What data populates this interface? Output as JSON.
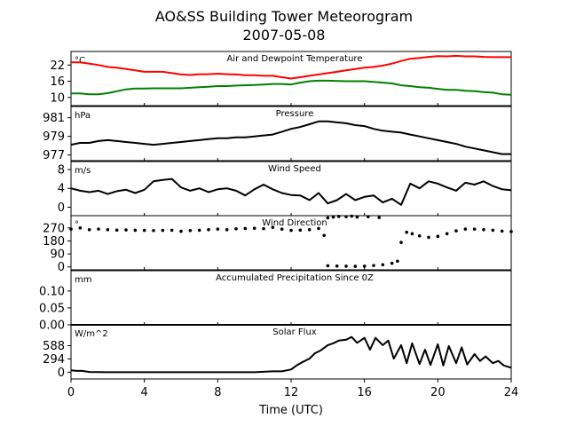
{
  "title_line1": "AO&SS Building Tower Meteorogram",
  "title_line2": "2007-05-08",
  "colors": {
    "temperature": "#ff0000",
    "dewpoint": "#008000",
    "black": "#000000"
  },
  "chart_data": [
    {
      "type": "line",
      "title": "Air and Dewpoint Temperature",
      "unit": "°C",
      "ylim": [
        7,
        27
      ],
      "yticks": [
        10,
        16,
        22
      ],
      "xlim": [
        0,
        24
      ],
      "series": [
        {
          "color": "#ff0000",
          "x": [
            0,
            0.5,
            1,
            1.5,
            2,
            2.5,
            3,
            3.5,
            4,
            4.5,
            5,
            5.5,
            6,
            6.5,
            7,
            7.5,
            8,
            8.5,
            9,
            9.5,
            10,
            10.5,
            11,
            11.5,
            12,
            12.5,
            13,
            13.5,
            14,
            14.5,
            15,
            15.5,
            16,
            16.5,
            17,
            17.5,
            18,
            18.5,
            19,
            19.5,
            20,
            20.5,
            21,
            21.5,
            22,
            22.5,
            23,
            23.5,
            24
          ],
          "values": [
            23,
            23,
            22.5,
            22,
            21.3,
            21,
            20.5,
            20,
            19.5,
            19.5,
            19.5,
            19,
            18.5,
            18.3,
            18.6,
            18.6,
            18.8,
            18.6,
            18.5,
            18.2,
            18.2,
            18,
            18,
            17.5,
            17,
            17.5,
            18,
            18.5,
            19,
            19.5,
            20,
            20.5,
            21,
            21.3,
            21.8,
            22.5,
            23.5,
            24.3,
            24.6,
            25,
            25.3,
            25.2,
            25.4,
            25.2,
            25.2,
            25,
            24.9,
            24.9,
            24.9
          ]
        },
        {
          "color": "#008000",
          "x": [
            0,
            0.5,
            1,
            1.5,
            2,
            2.5,
            3,
            3.5,
            4,
            4.5,
            5,
            5.5,
            6,
            6.5,
            7,
            7.5,
            8,
            8.5,
            9,
            9.5,
            10,
            10.5,
            11,
            11.5,
            12,
            12.5,
            13,
            13.5,
            14,
            14.5,
            15,
            15.5,
            16,
            16.5,
            17,
            17.5,
            18,
            18.5,
            19,
            19.5,
            20,
            20.5,
            21,
            21.5,
            22,
            22.5,
            23,
            23.5,
            24
          ],
          "values": [
            11.5,
            11.5,
            11.2,
            11.2,
            11.6,
            12.3,
            13,
            13.3,
            13.3,
            13.4,
            13.4,
            13.4,
            13.4,
            13.6,
            13.8,
            14,
            14.2,
            14.2,
            14.4,
            14.5,
            14.6,
            14.8,
            15,
            15,
            14.8,
            15.5,
            16,
            16.2,
            16.2,
            16.1,
            16,
            16,
            16,
            15.8,
            15.5,
            15.2,
            14.5,
            14.2,
            13.8,
            13.6,
            13.2,
            12.8,
            12.8,
            12.5,
            12.3,
            12,
            11.8,
            11.2,
            11
          ]
        }
      ]
    },
    {
      "type": "line",
      "title": "Pressure",
      "unit": "hPa",
      "ylim": [
        976.4,
        982.2
      ],
      "yticks": [
        977,
        979,
        981
      ],
      "xlim": [
        0,
        24
      ],
      "series": [
        {
          "color": "#000000",
          "x": [
            0,
            0.5,
            1,
            1.5,
            2,
            2.5,
            3,
            3.5,
            4,
            4.5,
            5,
            5.5,
            6,
            6.5,
            7,
            7.5,
            8,
            8.5,
            9,
            9.5,
            10,
            10.5,
            11,
            11.5,
            12,
            12.5,
            13,
            13.5,
            14,
            14.5,
            15,
            15.5,
            16,
            16.5,
            17,
            17.5,
            18,
            18.5,
            19,
            19.5,
            20,
            20.5,
            21,
            21.5,
            22,
            22.5,
            23,
            23.5,
            24
          ],
          "values": [
            978.1,
            978.3,
            978.3,
            978.5,
            978.6,
            978.5,
            978.4,
            978.3,
            978.2,
            978.1,
            978.2,
            978.3,
            978.4,
            978.5,
            978.6,
            978.7,
            978.8,
            978.8,
            978.9,
            978.9,
            979,
            979.1,
            979.2,
            979.5,
            979.8,
            980,
            980.3,
            980.6,
            980.6,
            980.5,
            980.4,
            980.2,
            980.1,
            979.8,
            979.6,
            979.5,
            979.4,
            979.2,
            979,
            978.8,
            978.6,
            978.4,
            978.2,
            977.9,
            977.7,
            977.5,
            977.3,
            977.1,
            977.1
          ]
        }
      ]
    },
    {
      "type": "line",
      "title": "Wind Speed",
      "unit": "m/s",
      "ylim": [
        -1.8,
        9.7
      ],
      "yticks": [
        0,
        4,
        8
      ],
      "xlim": [
        0,
        24
      ],
      "series": [
        {
          "color": "#000000",
          "x": [
            0,
            0.5,
            1,
            1.5,
            2,
            2.5,
            3,
            3.5,
            4,
            4.5,
            5,
            5.5,
            6,
            6.5,
            7,
            7.5,
            8,
            8.5,
            9,
            9.5,
            10,
            10.5,
            11,
            11.5,
            12,
            12.5,
            13,
            13.5,
            14,
            14.5,
            15,
            15.5,
            16,
            16.5,
            17,
            17.5,
            18,
            18.5,
            19,
            19.5,
            20,
            20.5,
            21,
            21.5,
            22,
            22.5,
            23,
            23.5,
            24
          ],
          "values": [
            4,
            3.5,
            3.2,
            3.5,
            2.8,
            3.4,
            3.7,
            3,
            3.7,
            5.5,
            5.8,
            6,
            4.2,
            3.5,
            4,
            3.2,
            3.8,
            4,
            3.5,
            2.5,
            3.8,
            4.8,
            3.8,
            3,
            2.6,
            2.5,
            1.5,
            3,
            0.8,
            1.5,
            2.8,
            1.5,
            2.2,
            2.5,
            1,
            1.8,
            0.5,
            5,
            4,
            5.5,
            5,
            4.2,
            3.5,
            5.2,
            4.8,
            5.5,
            4.5,
            3.8,
            3.6
          ]
        }
      ]
    },
    {
      "type": "scatter",
      "title": "Wind Direction",
      "unit": "°",
      "ylim": [
        -20,
        355
      ],
      "yticks": [
        0,
        90,
        180,
        270
      ],
      "xlim": [
        0,
        24
      ],
      "series": [
        {
          "color": "#000000",
          "x": [
            0,
            0.5,
            1,
            1.5,
            2,
            2.5,
            3,
            3.5,
            4,
            4.5,
            5,
            5.5,
            6,
            6.5,
            7,
            7.5,
            8,
            8.5,
            9,
            9.5,
            10,
            10.5,
            11,
            11.5,
            12,
            12.5,
            13,
            13.5,
            13.8,
            14,
            14.5,
            15,
            15.5,
            16,
            16.5,
            17,
            17.5,
            17.8,
            18,
            18.3,
            18.6,
            19,
            19.5,
            20,
            20.5,
            21,
            21.5,
            22,
            22.5,
            23,
            23.5,
            24
          ],
          "values": [
            262,
            270,
            258,
            262,
            258,
            255,
            256,
            254,
            253,
            252,
            253,
            254,
            247,
            252,
            254,
            258,
            262,
            258,
            264,
            266,
            268,
            265,
            274,
            262,
            253,
            255,
            258,
            266,
            218,
            8,
            6,
            5,
            4,
            5,
            10,
            15,
            25,
            40,
            170,
            240,
            230,
            215,
            205,
            212,
            230,
            250,
            262,
            262,
            258,
            254,
            248,
            245
          ]
        },
        {
          "color": "#000000",
          "x": [
            14,
            14.3,
            14.6,
            15,
            15.3,
            15.6,
            16.2,
            16.8
          ],
          "values": [
            340,
            345,
            350,
            348,
            352,
            346,
            348,
            342
          ]
        }
      ]
    },
    {
      "type": "line",
      "title": "Accumulated Precipitation Since 0Z",
      "unit": "mm",
      "ylim": [
        0,
        0.16
      ],
      "yticks": [
        "0.00",
        "0.05",
        "0.10"
      ],
      "xlim": [
        0,
        24
      ],
      "series": [
        {
          "color": "#000000",
          "x": [
            0,
            24
          ],
          "values": [
            0,
            0
          ]
        }
      ]
    },
    {
      "type": "line",
      "title": "Solar Flux",
      "unit": "W/m^2",
      "ylim": [
        -150,
        1050
      ],
      "yticks": [
        0,
        294,
        588
      ],
      "xlim": [
        0,
        24
      ],
      "xticks": [
        0,
        4,
        8,
        12,
        16,
        20,
        24
      ],
      "xlabel": "Time (UTC)",
      "series": [
        {
          "color": "#000000",
          "x": [
            0,
            0.3,
            0.6,
            1,
            2,
            4,
            6,
            8,
            10,
            11,
            11.5,
            12,
            12.3,
            12.6,
            13,
            13.3,
            13.6,
            14,
            14.3,
            14.6,
            15,
            15.3,
            15.6,
            16,
            16.3,
            16.6,
            17,
            17.3,
            17.6,
            18,
            18.3,
            18.6,
            19,
            19.3,
            19.6,
            20,
            20.3,
            20.6,
            21,
            21.3,
            21.6,
            22,
            22.3,
            22.6,
            23,
            23.3,
            23.6,
            24
          ],
          "values": [
            40,
            30,
            30,
            5,
            0,
            0,
            0,
            0,
            0,
            20,
            20,
            60,
            150,
            220,
            300,
            420,
            480,
            600,
            640,
            700,
            720,
            780,
            650,
            760,
            500,
            760,
            600,
            700,
            300,
            600,
            200,
            640,
            180,
            500,
            160,
            620,
            150,
            580,
            200,
            550,
            170,
            400,
            250,
            350,
            200,
            250,
            150,
            100
          ]
        }
      ]
    }
  ]
}
